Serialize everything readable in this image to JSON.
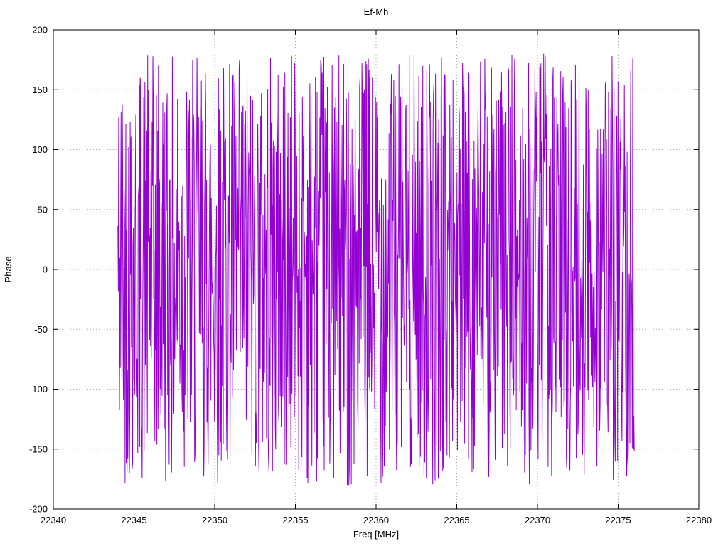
{
  "chart_data": {
    "type": "line",
    "title": "Ef-Mh",
    "xlabel": "Freq [MHz]",
    "ylabel": "Phase",
    "xlim": [
      22340,
      22380
    ],
    "ylim": [
      -200,
      200
    ],
    "x_ticks": [
      22340,
      22345,
      22350,
      22355,
      22360,
      22365,
      22370,
      22375,
      22380
    ],
    "y_ticks": [
      -200,
      -150,
      -100,
      -50,
      0,
      50,
      100,
      150,
      200
    ],
    "grid": true,
    "legend": false,
    "background": "#ffffff",
    "border_color": "#000000",
    "grid_color": "#a8a8a8",
    "line_color": "#9400d3",
    "series_spec": {
      "description": "Single-channel cross-correlation phase vs frequency: dense uniformly-distributed wrapped-phase noise spanning the full -180..180 degree range between 22344 and 22376 MHz; no data outside that band",
      "x_start": 22344.0,
      "x_end": 22376.0,
      "n_points": 1300,
      "y_min": -180,
      "y_max": 180,
      "seed": 42
    }
  }
}
